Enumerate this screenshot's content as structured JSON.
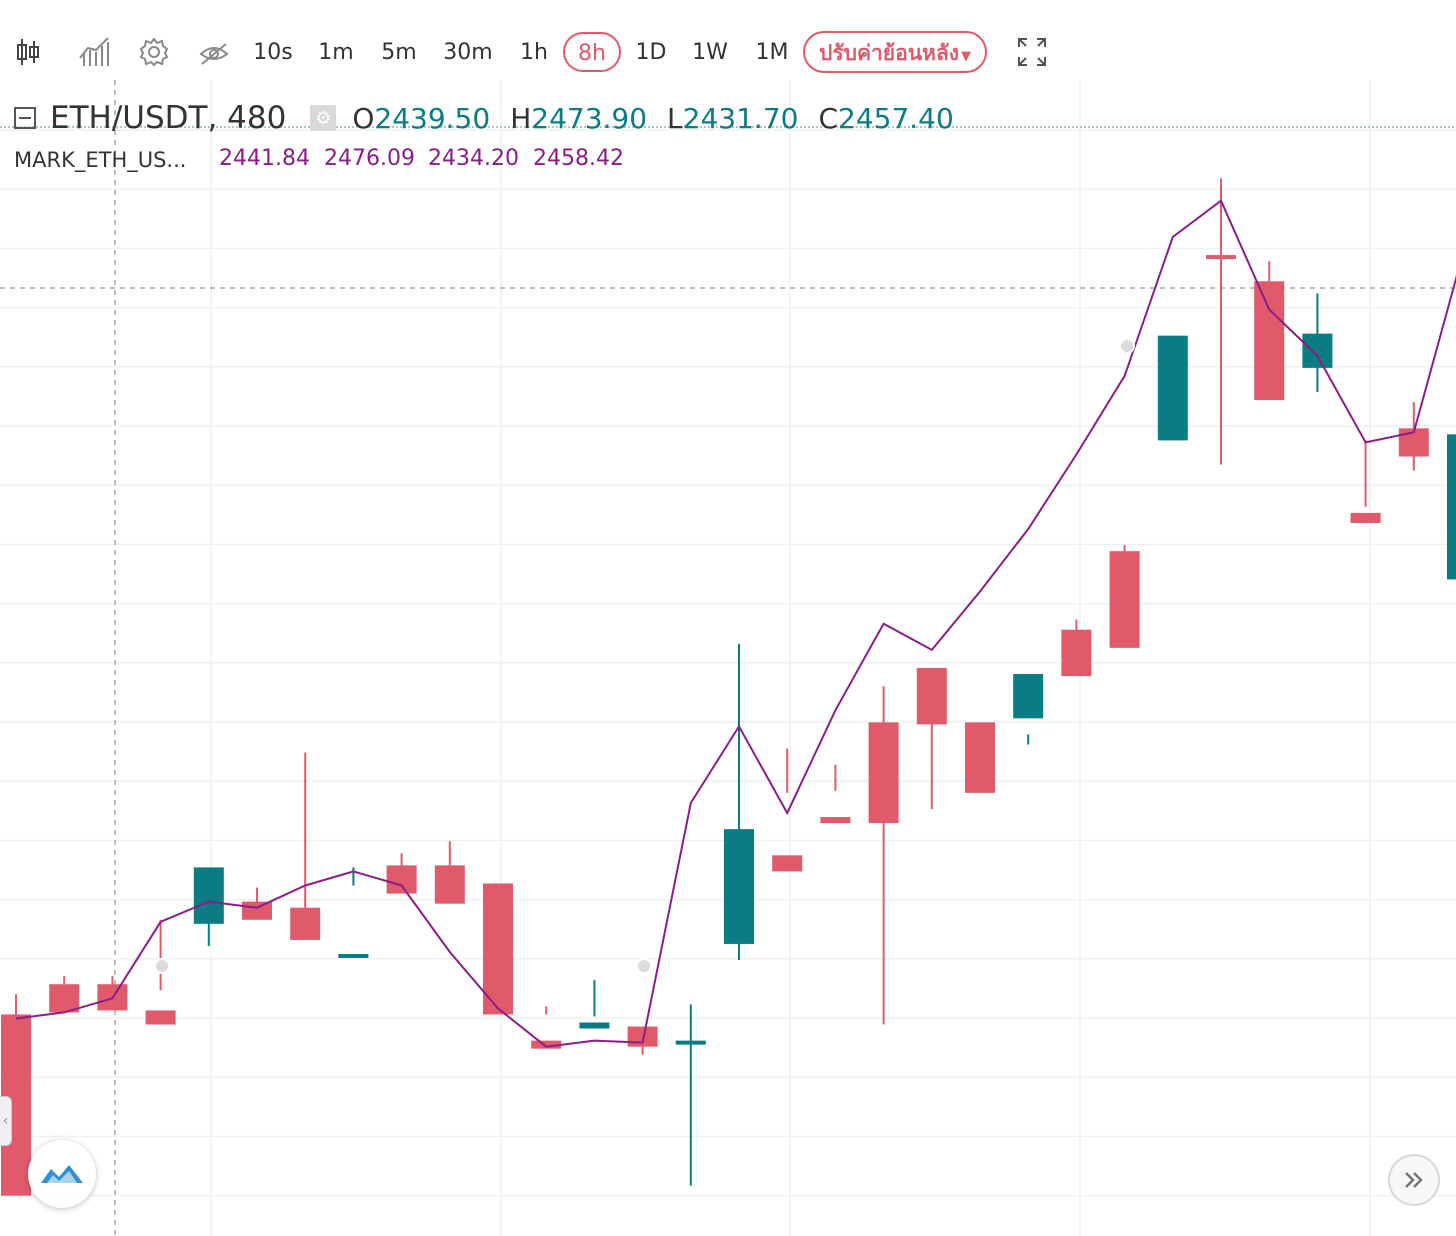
{
  "toolbar": {
    "intervals": [
      "10s",
      "1m",
      "5m",
      "30m",
      "1h",
      "8h",
      "1D",
      "1W",
      "1M"
    ],
    "active_interval": "8h",
    "adjust_label": "ปรับค่าย้อนหลัง"
  },
  "legend": {
    "symbol": "ETH/USDT, 480",
    "open_label": "O",
    "open": "2439.50",
    "high_label": "H",
    "high": "2473.90",
    "low_label": "L",
    "low": "2431.70",
    "close_label": "C",
    "close": "2457.40"
  },
  "mark_legend": {
    "name": "MARK_ETH_US...",
    "values": [
      "2441.84",
      "2476.09",
      "2434.20",
      "2458.42"
    ]
  },
  "colors": {
    "up": "#0a7c82",
    "down": "#e05a6b",
    "mark_line": "#8a1d88",
    "grid": "#eef1f4",
    "active": "#e05a6b"
  },
  "chart_data": {
    "type": "candlestick",
    "series": [
      {
        "name": "ETH/USDT",
        "ohlc": [
          [
            2431.5,
            2432.5,
            2423.0,
            2422.5
          ],
          [
            2433.0,
            2433.0,
            2433.4,
            2431.6
          ],
          [
            2433.0,
            2432.0,
            2433.4,
            2431.7
          ],
          [
            2431.7,
            2432.7,
            2436.2,
            2431.0
          ],
          [
            2436.0,
            2437.1,
            2434.9,
            2438.8
          ],
          [
            2437.1,
            2437.0,
            2437.8,
            2436.2
          ],
          [
            2436.8,
            2436.5,
            2444.5,
            2435.2
          ],
          [
            2434.5,
            2437.9,
            2438.8,
            2434.5
          ],
          [
            2438.9,
            2438.0,
            2439.5,
            2437.5
          ],
          [
            2438.9,
            2438.1,
            2440.1,
            2437.0
          ],
          [
            2438.0,
            2436.6,
            2434.3,
            2431.5
          ],
          [
            2430.2,
            2431.9,
            2431.5,
            2429.8
          ],
          [
            2430.8,
            2431.4,
            2433.2,
            2431.1
          ],
          [
            2430.9,
            2429.5,
            2430.7,
            2429.9
          ],
          [
            2430.2,
            2423.0,
            2432.0,
            2430.2
          ],
          [
            2435.0,
            2434.2,
            2449.9,
            2440.7
          ],
          [
            2439.4,
            2442.5,
            2444.7,
            2438.6
          ],
          [
            2441.3,
            2442.6,
            2443.9,
            2441.0
          ],
          [
            2446.0,
            2431.0,
            2447.8,
            2441.0
          ],
          [
            2448.7,
            2446.0,
            2441.7,
            2445.9
          ],
          [
            2446.0,
            2444.3,
            2445.6,
            2442.5
          ],
          [
            2446.2,
            2445.4,
            2444.9,
            2448.4
          ],
          [
            2450.6,
            2451.1,
            2448.7,
            2448.3
          ],
          [
            2454.5,
            2454.8,
            2451.4,
            2449.7
          ],
          [
            2460.0,
            2464.0,
            2460.8,
            2465.2
          ],
          [
            2469.2,
            2473.0,
            2458.8,
            2469.1
          ],
          [
            2467.9,
            2467.9,
            2468.9,
            2462.0
          ],
          [
            2463.6,
            2467.3,
            2462.4,
            2465.3
          ],
          [
            2456.4,
            2460.0,
            2456.7,
            2455.9
          ],
          [
            2460.6,
            2461.9,
            2458.5,
            2459.2
          ],
          [
            2453.1,
            2460.1,
            2454.5,
            2460.3
          ]
        ]
      },
      {
        "name": "MARK_ETH_US...",
        "values": [
          2431.3,
          2431.6,
          2432.3,
          2436.1,
          2437.1,
          2436.8,
          2437.9,
          2438.6,
          2437.9,
          2434.6,
          2431.8,
          2429.9,
          2430.2,
          2430.1,
          2442.0,
          2445.8,
          2441.5,
          2446.6,
          2450.9,
          2449.6,
          2452.5,
          2455.6,
          2459.3,
          2463.2,
          2470.1,
          2471.9,
          2466.5,
          2464.2,
          2459.9,
          2460.4,
          2469.1
        ]
      }
    ],
    "ylim": [
      2420.5,
      2476.9
    ],
    "xlabel": "",
    "ylabel": "",
    "grid": true,
    "legend_position": "top-left",
    "last_value_line": 2467.0
  }
}
